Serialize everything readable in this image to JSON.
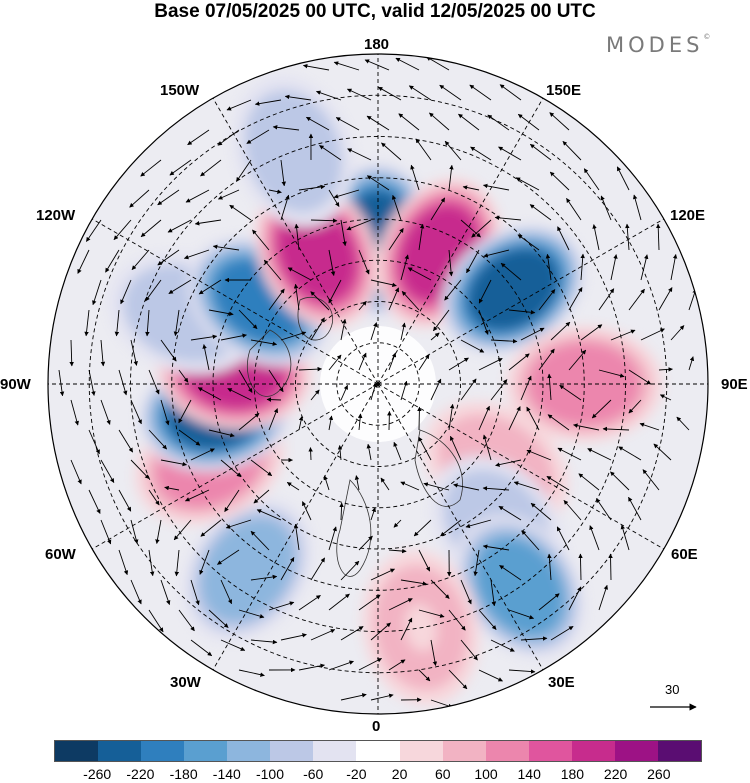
{
  "title": "Base 07/05/2025 00 UTC, valid 12/05/2025 00 UTC",
  "logo": "MODES",
  "logo_mark": "©",
  "longitude_labels": {
    "top": "180",
    "top_left": "150W",
    "top_right": "150E",
    "upper_left": "120W",
    "upper_right": "120E",
    "left": "90W",
    "right": "90E",
    "lower_left": "60W",
    "lower_right": "60E",
    "bottom_left": "30W",
    "bottom_right": "30E",
    "bottom": "0"
  },
  "reference_vector": "30",
  "colorbar": {
    "colors": [
      "#0d3a63",
      "#155f98",
      "#2f7fbe",
      "#5a9fd0",
      "#8db6de",
      "#bcc8e6",
      "#e3e3f1",
      "#ffffff",
      "#f7d7dc",
      "#f2b3c3",
      "#ec86ad",
      "#e0559e",
      "#c72c8d",
      "#9d1285",
      "#5a0d72"
    ],
    "ticks": [
      "-260",
      "-220",
      "-180",
      "-140",
      "-100",
      "-60",
      "-20",
      "20",
      "60",
      "100",
      "140",
      "180",
      "220",
      "260"
    ]
  },
  "anomaly_centers": [
    {
      "lon": 180,
      "lat": 55,
      "value": -240
    },
    {
      "lon": 155,
      "lat": 55,
      "value": 200
    },
    {
      "lon": 125,
      "lat": 50,
      "value": -220
    },
    {
      "lon": 90,
      "lat": 40,
      "value": 120
    },
    {
      "lon": 55,
      "lat": 55,
      "value": 80
    },
    {
      "lon": 40,
      "lat": 45,
      "value": -80
    },
    {
      "lon": 35,
      "lat": 30,
      "value": -160
    },
    {
      "lon": 10,
      "lat": 30,
      "value": 60
    },
    {
      "lon": -35,
      "lat": 35,
      "value": -120
    },
    {
      "lon": -65,
      "lat": 45,
      "value": 120
    },
    {
      "lon": -80,
      "lat": 50,
      "value": -220
    },
    {
      "lon": -95,
      "lat": 55,
      "value": 200
    },
    {
      "lon": -110,
      "lat": 40,
      "value": -80
    },
    {
      "lon": -125,
      "lat": 55,
      "value": -200
    },
    {
      "lon": -155,
      "lat": 55,
      "value": 210
    },
    {
      "lon": -160,
      "lat": 30,
      "value": -60
    }
  ]
}
